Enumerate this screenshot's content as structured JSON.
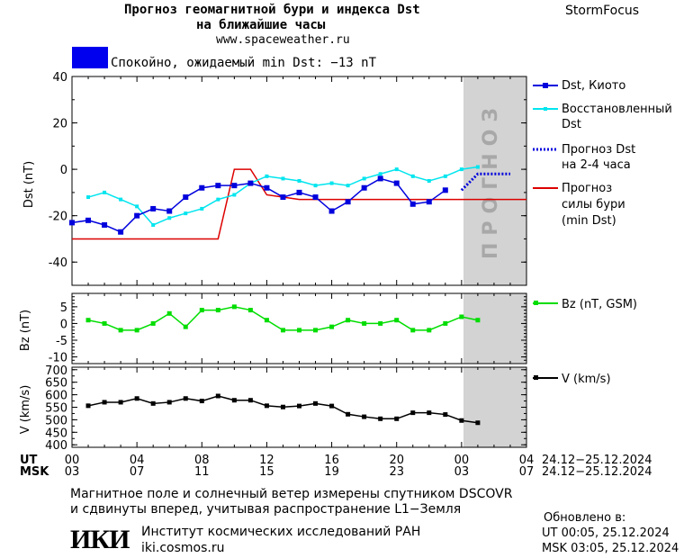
{
  "header": {
    "title_line1": "Прогноз геомагнитной бури и индекса Dst",
    "title_line2": "на ближайшие часы",
    "site": "www.spaceweather.ru",
    "brand": "StormFocus",
    "status_text": "Спокойно, ожидаемый min Dst: −13 nT",
    "status_color": "#0000ee"
  },
  "forecast_zone_label": "ПРОГНОЗ",
  "legend": {
    "dst_kyoto": "Dst, Киото",
    "restored": [
      "Восстановленный",
      "Dst"
    ],
    "forecast": [
      "Прогноз Dst",
      "на 2-4 часа"
    ],
    "storm": [
      "Прогноз",
      "силы бури",
      "(min Dst)"
    ],
    "bz": "Bz (nT, GSM)",
    "v": "V (km/s)"
  },
  "axes": {
    "dst_ylabel": "Dst (nT)",
    "bz_ylabel": "Bz (nT)",
    "v_ylabel": "V (km/s)",
    "dst_ticks": [
      "40",
      "20",
      "0",
      "-20",
      "-40"
    ],
    "bz_ticks": [
      "5",
      "0",
      "-5",
      "-10"
    ],
    "v_ticks": [
      "700",
      "650",
      "600",
      "550",
      "500",
      "450",
      "400"
    ],
    "ut_label": "UT",
    "msk_label": "MSK",
    "ut_ticks": [
      "00",
      "04",
      "08",
      "12",
      "16",
      "20",
      "00",
      "04"
    ],
    "msk_ticks": [
      "03",
      "07",
      "11",
      "15",
      "19",
      "23",
      "03",
      "07"
    ],
    "date_range_ut": "24.12−25.12.2024",
    "date_range_msk": "24.12−25.12.2024"
  },
  "footer": {
    "note_line1": "Магнитное поле и солнечный ветер измерены спутником DSCOVR",
    "note_line2": "и сдвинуты вперед, учитывая распространение L1−Земля",
    "logo_text": "ИКИ",
    "institute": "Институт космических исследований РАН",
    "institute_site": "iki.cosmos.ru",
    "updated_label": "Обновлено в:",
    "updated_ut": "UT  00:05, 25.12.2024",
    "updated_msk": "MSK 03:05, 25.12.2024"
  },
  "colors": {
    "dst_kyoto": "#0000dd",
    "restored": "#00e5ee",
    "forecast": "#0000dd",
    "storm": "#dd0000",
    "bz": "#00dd00",
    "v": "#000000",
    "forecast_zone": "#d3d3d3"
  },
  "chart_data": [
    {
      "type": "line",
      "panel": "dst",
      "ylim": [
        -50,
        40
      ],
      "xlim": [
        0,
        28
      ],
      "series": [
        {
          "name": "Dst, Киото",
          "x": [
            0,
            1,
            2,
            3,
            4,
            5,
            6,
            7,
            8,
            9,
            10,
            11,
            12,
            13,
            14,
            15,
            16,
            17,
            18,
            19,
            20,
            21,
            22,
            23,
            24
          ],
          "values": [
            -23,
            -22,
            -24,
            -27,
            -20,
            -17,
            -18,
            -12,
            -8,
            -7,
            -7,
            -6,
            -8,
            -12,
            -10,
            -12,
            -18,
            -14,
            -8,
            -4,
            -6,
            -15,
            -14,
            -9,
            null
          ]
        },
        {
          "name": "Восстановленный Dst",
          "x": [
            1,
            2,
            3,
            4,
            5,
            6,
            7,
            8,
            9,
            10,
            11,
            12,
            13,
            14,
            15,
            16,
            17,
            18,
            19,
            20,
            21,
            22,
            23,
            24,
            25
          ],
          "values": [
            -12,
            -10,
            -13,
            -16,
            -24,
            -21,
            -19,
            -17,
            -13,
            -11,
            -6,
            -3,
            -4,
            -5,
            -7,
            -6,
            -7,
            -4,
            -2,
            0,
            -3,
            -5,
            -3,
            0,
            1
          ]
        },
        {
          "name": "Прогноз Dst на 2-4 часа",
          "x": [
            24,
            25,
            26,
            27
          ],
          "values": [
            -9,
            -2,
            -2,
            -2
          ]
        },
        {
          "name": "Прогноз силы бури (min Dst)",
          "x": [
            0,
            2,
            9,
            10,
            11,
            12,
            13,
            14,
            28
          ],
          "values": [
            -30,
            -30,
            -30,
            0,
            0,
            -11,
            -12,
            -13,
            -13
          ]
        }
      ]
    },
    {
      "type": "line",
      "panel": "bz",
      "ylim": [
        -12,
        9
      ],
      "series": [
        {
          "name": "Bz (nT, GSM)",
          "x": [
            1,
            2,
            3,
            4,
            5,
            6,
            7,
            8,
            9,
            10,
            11,
            12,
            13,
            14,
            15,
            16,
            17,
            18,
            19,
            20,
            21,
            22,
            23,
            24,
            25
          ],
          "values": [
            1,
            0,
            -2,
            -2,
            0,
            3,
            -1,
            4,
            4,
            5,
            4,
            1,
            -2,
            -2,
            -2,
            -1,
            1,
            0,
            0,
            1,
            -2,
            -2,
            0,
            2,
            1
          ]
        }
      ]
    },
    {
      "type": "line",
      "panel": "v",
      "ylim": [
        390,
        710
      ],
      "series": [
        {
          "name": "V (km/s)",
          "x": [
            1,
            2,
            3,
            4,
            5,
            6,
            7,
            8,
            9,
            10,
            11,
            12,
            13,
            14,
            15,
            16,
            17,
            18,
            19,
            20,
            21,
            22,
            23,
            24,
            25
          ],
          "values": [
            556,
            570,
            570,
            585,
            565,
            570,
            585,
            575,
            595,
            578,
            578,
            556,
            551,
            555,
            565,
            555,
            522,
            512,
            504,
            504,
            528,
            528,
            521,
            497,
            488
          ]
        }
      ]
    }
  ]
}
